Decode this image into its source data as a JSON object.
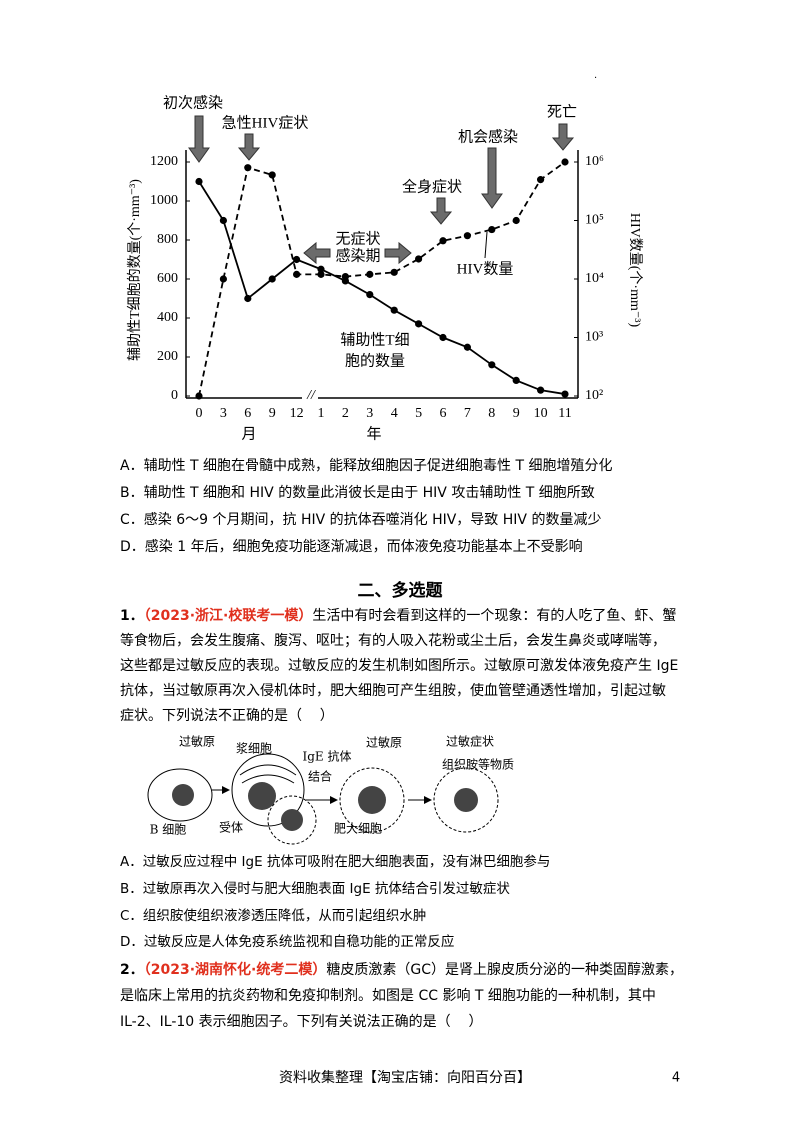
{
  "top_mark": ".",
  "chart_data": {
    "type": "line",
    "categories": [
      "0",
      "3",
      "6",
      "9",
      "12",
      "1",
      "2",
      "3",
      "4",
      "5",
      "6",
      "7",
      "8",
      "9",
      "10",
      "11"
    ],
    "axis_break": "//",
    "x_unit_labels": [
      "月",
      "年"
    ],
    "ylabel": "辅助性T细胞的数量(个·mm⁻³)",
    "y2label": "HIV数量(个·mm⁻³)",
    "ylim": [
      0,
      1200
    ],
    "yticks": [
      0,
      200,
      400,
      600,
      800,
      1000,
      1200
    ],
    "y2lim": [
      100,
      1000000
    ],
    "y2scale": "log",
    "y2ticks": [
      {
        "value": 100,
        "label": "10²"
      },
      {
        "value": 1000,
        "label": "10³"
      },
      {
        "value": 10000,
        "label": "10⁴"
      },
      {
        "value": 100000,
        "label": "10⁵"
      },
      {
        "value": 1000000,
        "label": "10⁶"
      }
    ],
    "series": [
      {
        "style": "solid",
        "color": "#000000",
        "values": [
          1100,
          900,
          500,
          600,
          700,
          650,
          590,
          520,
          440,
          370,
          300,
          250,
          160,
          80,
          30,
          10
        ]
      },
      {
        "style": "dashed",
        "color": "#000000",
        "axis": "y2",
        "values": [
          100,
          10000,
          800000,
          600000,
          12000,
          12000,
          11000,
          12000,
          13000,
          22000,
          45000,
          55000,
          70000,
          100000,
          500000,
          1000000
        ]
      }
    ],
    "annotations": [
      [
        "初次感染"
      ],
      [
        "急性HIV症状"
      ],
      [
        "无症状",
        "感染期"
      ],
      [
        "全身症状"
      ],
      [
        "机会感染"
      ],
      [
        "死亡"
      ],
      [
        "HIV数量"
      ],
      [
        "辅助性T细",
        "胞的数量"
      ]
    ]
  },
  "options": [
    "A．辅助性 T 细胞在骨髓中成熟，能释放细胞因子促进细胞毒性 T 细胞增殖分化",
    "B．辅助性 T 细胞和 HIV 的数量此消彼长是由于 HIV 攻击辅助性 T 细胞所致",
    "C．感染 6～9 个月期间，抗 HIV 的抗体吞噬消化 HIV，导致 HIV 的数量减少",
    "D．感染 1 年后，细胞免疫功能逐渐减退，而体液免疫功能基本上不受影响"
  ],
  "section_title": "二、多选题",
  "questions": [
    {
      "number": "1．",
      "source": "（2023·浙江·校联考一模）",
      "stem_lines": [
        "生活中有时会看到这样的一个现象：有的人吃了鱼、虾、蟹",
        "等食物后，会发生腹痛、腹泻、呕吐；有的人吸入花粉或尘土后，会发生鼻炎或哮喘等，",
        "这些都是过敏反应的表现。过敏反应的发生机制如图所示。过敏原可激发体液免疫产生 IgE",
        "抗体，当过敏原再次入侵机体时，肥大细胞可产生组胺，使血管壁通透性增加，引起过敏",
        "症状。下列说法不正确的是（    ）"
      ],
      "figure_labels": [
        "过敏原",
        "浆细胞",
        "IgE 抗体",
        "过敏原",
        "过敏症状",
        "组织胺等物质",
        "结合",
        "B 细胞",
        "受体",
        "肥大细胞"
      ],
      "options": [
        "A．过敏反应过程中 IgE 抗体可吸附在肥大细胞表面，没有淋巴细胞参与",
        "B．过敏原再次入侵时与肥大细胞表面 IgE 抗体结合引发过敏症状",
        "C．组织胺使组织液渗透压降低，从而引起组织水肿",
        "D．过敏反应是人体免疫系统监视和自稳功能的正常反应"
      ]
    },
    {
      "number": "2．",
      "source": "（2023·湖南怀化·统考二模）",
      "stem_lines": [
        "糖皮质激素（GC）是肾上腺皮质分泌的一种类固醇激素，",
        "是临床上常用的抗炎药物和免疫抑制剂。如图是 CC 影响 T 细胞功能的一种机制，其中",
        "IL-2、IL-10 表示细胞因子。下列有关说法正确的是（    ）"
      ]
    }
  ],
  "footer": {
    "text": "资料收集整理【淘宝店铺：向阳百分百】",
    "page_number": 4
  }
}
